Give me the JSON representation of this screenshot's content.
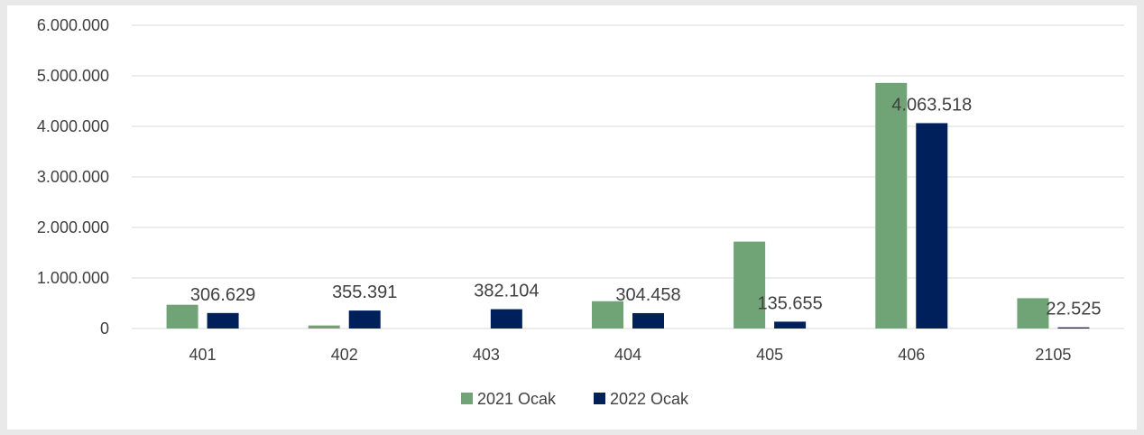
{
  "chart_data": {
    "type": "bar",
    "categories": [
      "401",
      "402",
      "403",
      "404",
      "405",
      "406",
      "2105"
    ],
    "series": [
      {
        "name": "2021 Ocak",
        "color": "#70A476",
        "values": [
          470000,
          60000,
          0,
          540000,
          1720000,
          4860000,
          600000
        ],
        "labels": [
          "",
          "",
          "",
          "",
          "",
          "",
          ""
        ]
      },
      {
        "name": "2022 Ocak",
        "color": "#00205B",
        "values": [
          306629,
          355391,
          382104,
          304458,
          135655,
          4063518,
          22525
        ],
        "labels": [
          "306.629",
          "355.391",
          "382.104",
          "304.458",
          "135.655",
          "4.063.518",
          "22.525"
        ]
      }
    ],
    "ylim": [
      0,
      6000000
    ],
    "yticks": [
      0,
      1000000,
      2000000,
      3000000,
      4000000,
      5000000,
      6000000
    ],
    "ytick_labels": [
      "0",
      "1.000.000",
      "2.000.000",
      "3.000.000",
      "4.000.000",
      "5.000.000",
      "6.000.000"
    ],
    "grid": true,
    "legend_position": "bottom"
  }
}
